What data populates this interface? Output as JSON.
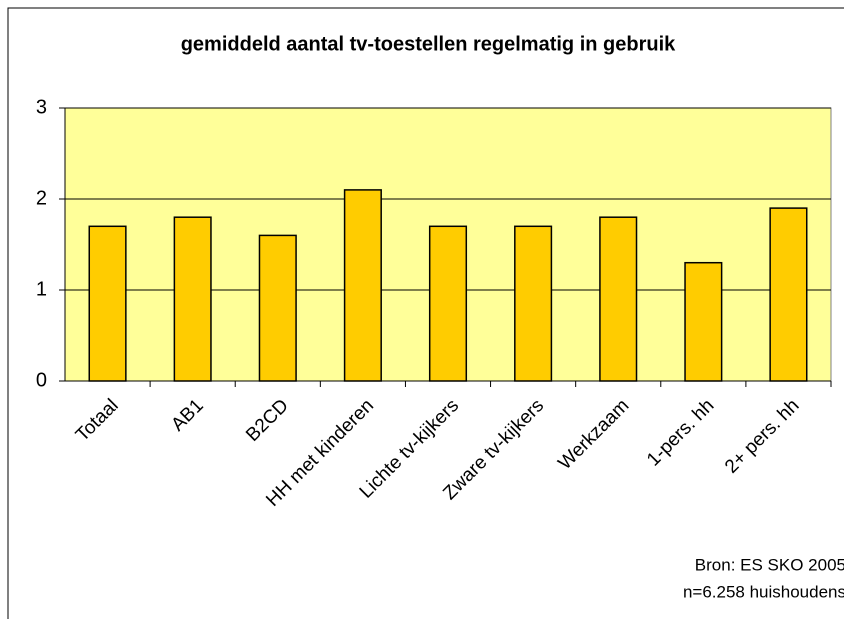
{
  "chart_data": {
    "type": "bar",
    "title": "gemiddeld aantal tv-toestellen regelmatig in gebruik",
    "categories": [
      "Totaal",
      "AB1",
      "B2CD",
      "HH met kinderen",
      "Lichte tv-kijkers",
      "Zware tv-kijkers",
      "Werkzaam",
      "1-pers. hh",
      "2+ pers. hh"
    ],
    "values": [
      1.7,
      1.8,
      1.6,
      2.1,
      1.7,
      1.7,
      1.8,
      1.3,
      1.9
    ],
    "color": "#ffcc00",
    "plot_background": "#ffff99",
    "ylim": [
      0,
      3
    ],
    "yticks": [
      0,
      1,
      2,
      3
    ],
    "grid": true,
    "annotations": [
      "Bron: ES SKO 2005",
      "n=6.258 huishoudens"
    ]
  }
}
